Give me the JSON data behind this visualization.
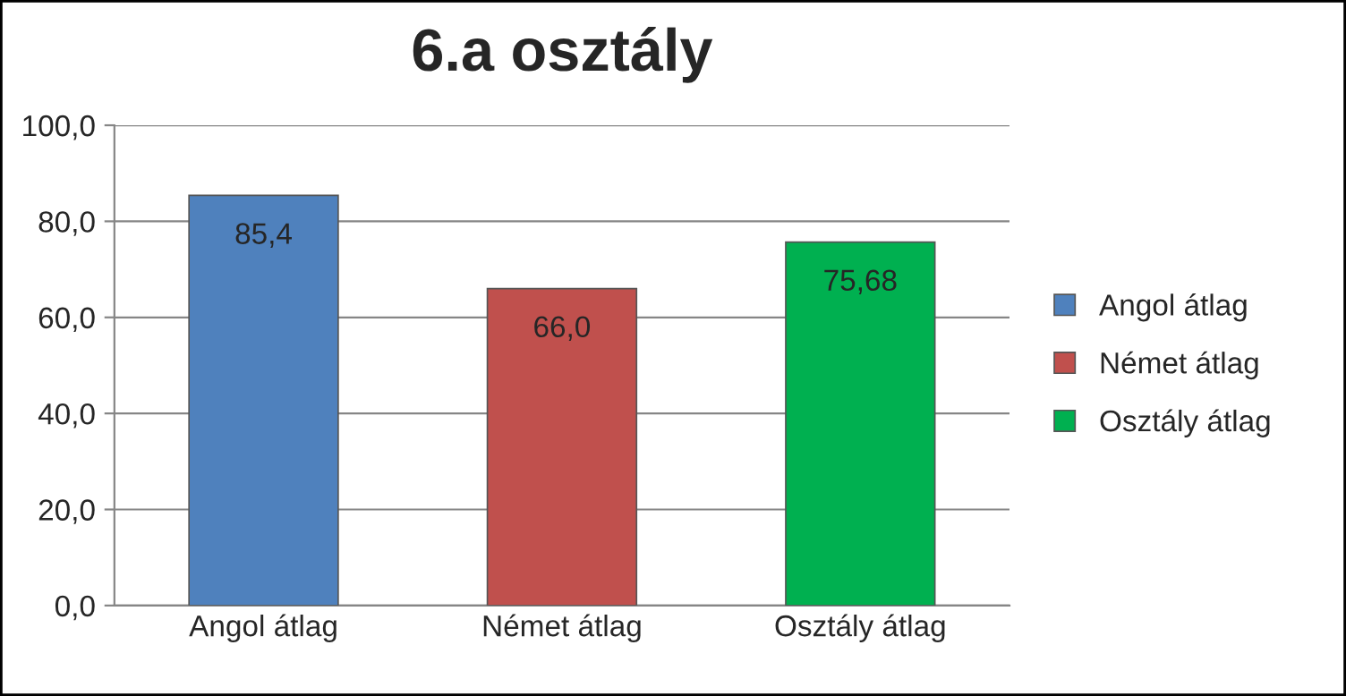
{
  "chart_data": {
    "type": "bar",
    "title": "6.a osztály",
    "categories": [
      "Angol átlag",
      "Német átlag",
      "Osztály átlag"
    ],
    "series": [
      {
        "name": "Angol átlag",
        "color": "#4f81bd",
        "values": [
          85.4,
          null,
          null
        ],
        "value_labels": [
          "85,4",
          null,
          null
        ]
      },
      {
        "name": "Német átlag",
        "color": "#c0504d",
        "values": [
          null,
          66.0,
          null
        ],
        "value_labels": [
          null,
          "66,0",
          null
        ]
      },
      {
        "name": "Osztály átlag",
        "color": "#00b050",
        "values": [
          null,
          null,
          75.68
        ],
        "value_labels": [
          null,
          null,
          "75,68"
        ]
      }
    ],
    "ylim": [
      0,
      100
    ],
    "yticks": [
      {
        "value": 0,
        "label": "0,0"
      },
      {
        "value": 20,
        "label": "20,0"
      },
      {
        "value": 40,
        "label": "40,0"
      },
      {
        "value": 60,
        "label": "60,0"
      },
      {
        "value": 80,
        "label": "80,0"
      },
      {
        "value": 100,
        "label": "100,0"
      }
    ],
    "grid": "y",
    "legend": "right"
  }
}
